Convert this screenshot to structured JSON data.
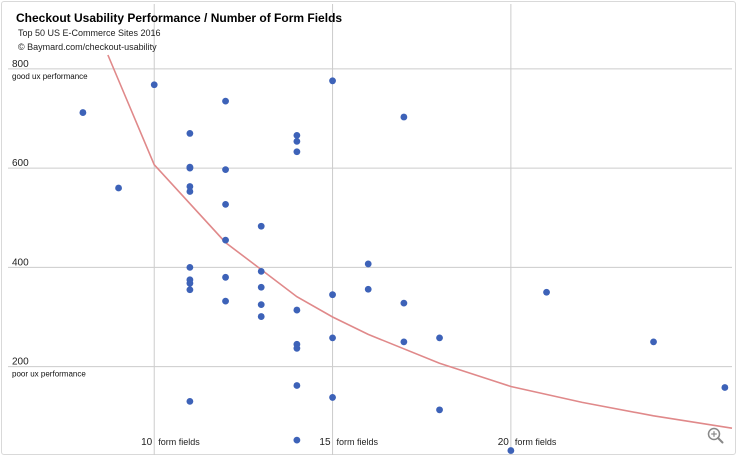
{
  "chart_data": {
    "type": "scatter",
    "title": "Checkout Usability Performance / Number of Form Fields",
    "subtitle": "Top 50 US E-Commerce Sites 2016",
    "source": "© Baymard.com/checkout-usability",
    "xlabel": "",
    "ylabel": "",
    "xlim": [
      5.9,
      26.2
    ],
    "ylim": [
      22,
      828
    ],
    "x_ticks": [
      {
        "value": 10,
        "num": "10",
        "label": "form fields"
      },
      {
        "value": 15,
        "num": "15",
        "label": "form fields"
      },
      {
        "value": 20,
        "num": "20",
        "label": "form fields"
      }
    ],
    "y_ticks": [
      {
        "value": 800,
        "label": "800"
      },
      {
        "value": 600,
        "label": "600"
      },
      {
        "value": 400,
        "label": "400"
      },
      {
        "value": 200,
        "label": "200"
      }
    ],
    "annotations": [
      {
        "y": 800,
        "text": "good ux performance"
      },
      {
        "y": 200,
        "text": "poor ux performance"
      }
    ],
    "grid": true,
    "marker_color": "#3d62b8",
    "trend_color": "#e0898a",
    "points": [
      {
        "x": 8,
        "y": 712
      },
      {
        "x": 9,
        "y": 560
      },
      {
        "x": 10,
        "y": 768
      },
      {
        "x": 11,
        "y": 670
      },
      {
        "x": 11,
        "y": 602
      },
      {
        "x": 11,
        "y": 600
      },
      {
        "x": 11,
        "y": 563
      },
      {
        "x": 11,
        "y": 553
      },
      {
        "x": 11,
        "y": 400
      },
      {
        "x": 11,
        "y": 375
      },
      {
        "x": 11,
        "y": 368
      },
      {
        "x": 11,
        "y": 355
      },
      {
        "x": 11,
        "y": 130
      },
      {
        "x": 12,
        "y": 735
      },
      {
        "x": 12,
        "y": 597
      },
      {
        "x": 12,
        "y": 527
      },
      {
        "x": 12,
        "y": 455
      },
      {
        "x": 12,
        "y": 380
      },
      {
        "x": 12,
        "y": 332
      },
      {
        "x": 13,
        "y": 483
      },
      {
        "x": 13,
        "y": 392
      },
      {
        "x": 13,
        "y": 360
      },
      {
        "x": 13,
        "y": 325
      },
      {
        "x": 13,
        "y": 301
      },
      {
        "x": 14,
        "y": 666
      },
      {
        "x": 14,
        "y": 654
      },
      {
        "x": 14,
        "y": 633
      },
      {
        "x": 14,
        "y": 314
      },
      {
        "x": 14,
        "y": 245
      },
      {
        "x": 14,
        "y": 237
      },
      {
        "x": 14,
        "y": 162
      },
      {
        "x": 14,
        "y": 52
      },
      {
        "x": 15,
        "y": 776
      },
      {
        "x": 15,
        "y": 345
      },
      {
        "x": 15,
        "y": 258
      },
      {
        "x": 15,
        "y": 138
      },
      {
        "x": 16,
        "y": 407
      },
      {
        "x": 16,
        "y": 356
      },
      {
        "x": 17,
        "y": 703
      },
      {
        "x": 17,
        "y": 328
      },
      {
        "x": 17,
        "y": 250
      },
      {
        "x": 18,
        "y": 258
      },
      {
        "x": 18,
        "y": 113
      },
      {
        "x": 20,
        "y": 31
      },
      {
        "x": 21,
        "y": 350
      },
      {
        "x": 24,
        "y": 250
      },
      {
        "x": 26,
        "y": 158
      }
    ],
    "trendline": {
      "type": "exponential",
      "points": [
        {
          "x": 8.7,
          "y": 828
        },
        {
          "x": 10,
          "y": 607
        },
        {
          "x": 12,
          "y": 450
        },
        {
          "x": 14,
          "y": 341
        },
        {
          "x": 15,
          "y": 300
        },
        {
          "x": 16,
          "y": 265
        },
        {
          "x": 18,
          "y": 207
        },
        {
          "x": 20,
          "y": 160
        },
        {
          "x": 22,
          "y": 128
        },
        {
          "x": 24,
          "y": 101
        },
        {
          "x": 26.2,
          "y": 76
        }
      ]
    }
  },
  "ui": {
    "zoom_icon": "magnifier-plus-icon"
  }
}
